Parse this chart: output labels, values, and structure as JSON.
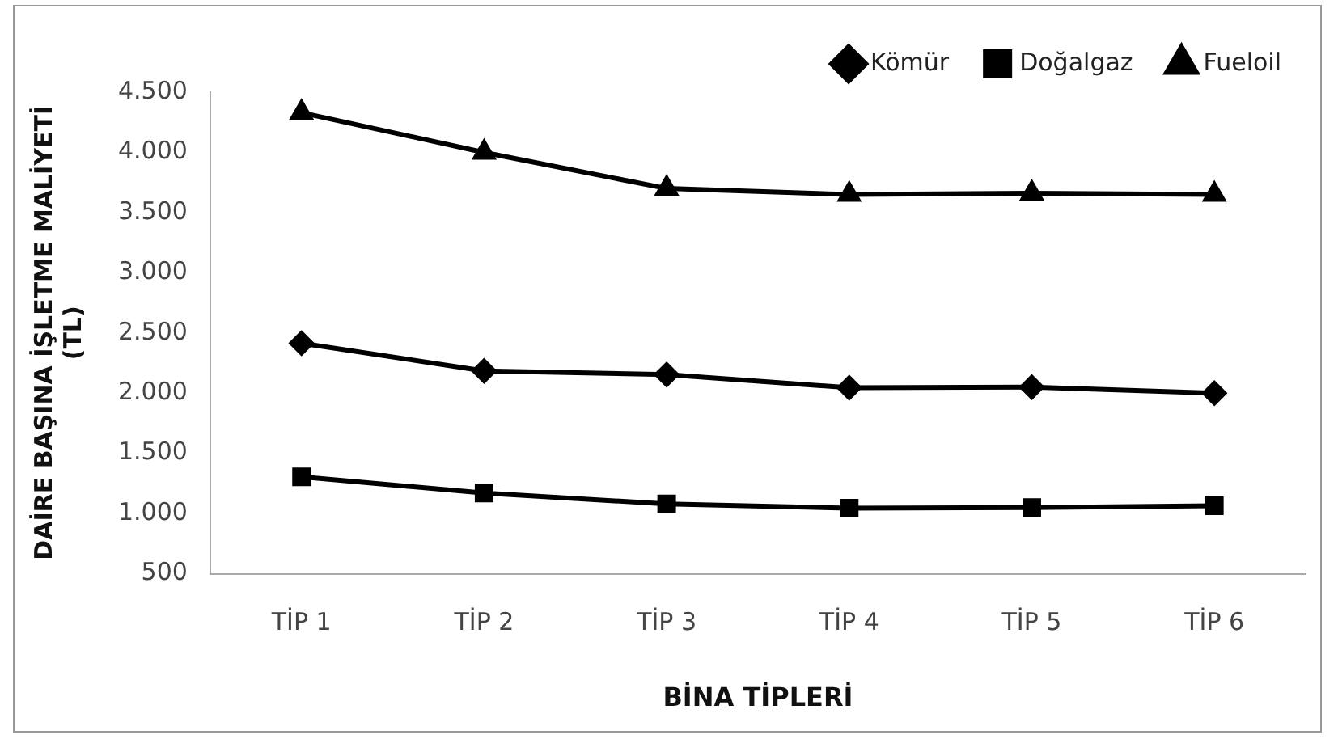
{
  "chart_data": {
    "type": "line",
    "xlabel": "BİNA TİPLERİ",
    "ylabel": "DAİRE BAŞINA İŞLETME MALİYETİ\n(TL)",
    "categories": [
      "TİP 1",
      "TİP 2",
      "TİP 3",
      "TİP 4",
      "TİP 5",
      "TİP 6"
    ],
    "series": [
      {
        "name": "Kömür",
        "color": "#000000",
        "marker": "diamond",
        "values": [
          2415,
          2185,
          2155,
          2045,
          2050,
          2000
        ]
      },
      {
        "name": "Doğalgaz",
        "color": "#000000",
        "marker": "square",
        "values": [
          1305,
          1170,
          1080,
          1045,
          1050,
          1065
        ]
      },
      {
        "name": "Fueloil",
        "color": "#000000",
        "marker": "triangle",
        "values": [
          4330,
          4000,
          3700,
          3650,
          3660,
          3650
        ]
      }
    ],
    "ylim": [
      500,
      4500
    ],
    "yticks": [
      {
        "value": 500,
        "label": "500"
      },
      {
        "value": 1000,
        "label": "1.000"
      },
      {
        "value": 1500,
        "label": "1.500"
      },
      {
        "value": 2000,
        "label": "2.000"
      },
      {
        "value": 2500,
        "label": "2.500"
      },
      {
        "value": 3000,
        "label": "3.000"
      },
      {
        "value": 3500,
        "label": "3.500"
      },
      {
        "value": 4000,
        "label": "4.000"
      },
      {
        "value": 4500,
        "label": "4.500"
      }
    ],
    "grid": false,
    "legend": "top right",
    "line_style": "solid"
  }
}
